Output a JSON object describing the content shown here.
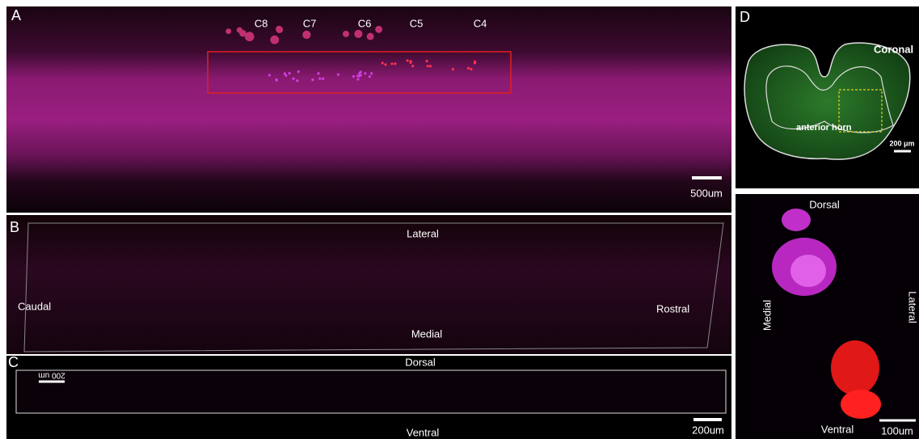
{
  "panels": {
    "a": {
      "label": "A",
      "segments": [
        "C8",
        "C7",
        "C6",
        "C5",
        "C4"
      ],
      "scale_bar": "500um"
    },
    "b": {
      "label": "B",
      "top": "Lateral",
      "left": "Caudal",
      "right": "Rostral",
      "bottom": "Medial"
    },
    "c": {
      "label": "C",
      "top": "Dorsal",
      "inset_scale": "200 um",
      "scale_bar": "200um",
      "bottom": "Ventral"
    },
    "d": {
      "label": "D",
      "view": "Coronal",
      "region": "anterior horn",
      "scale_bar": "200 μm",
      "top": "Dorsal",
      "left": "Medial",
      "right": "Lateral",
      "bottom": "Ventral",
      "scale_bar_2": "100um"
    }
  }
}
